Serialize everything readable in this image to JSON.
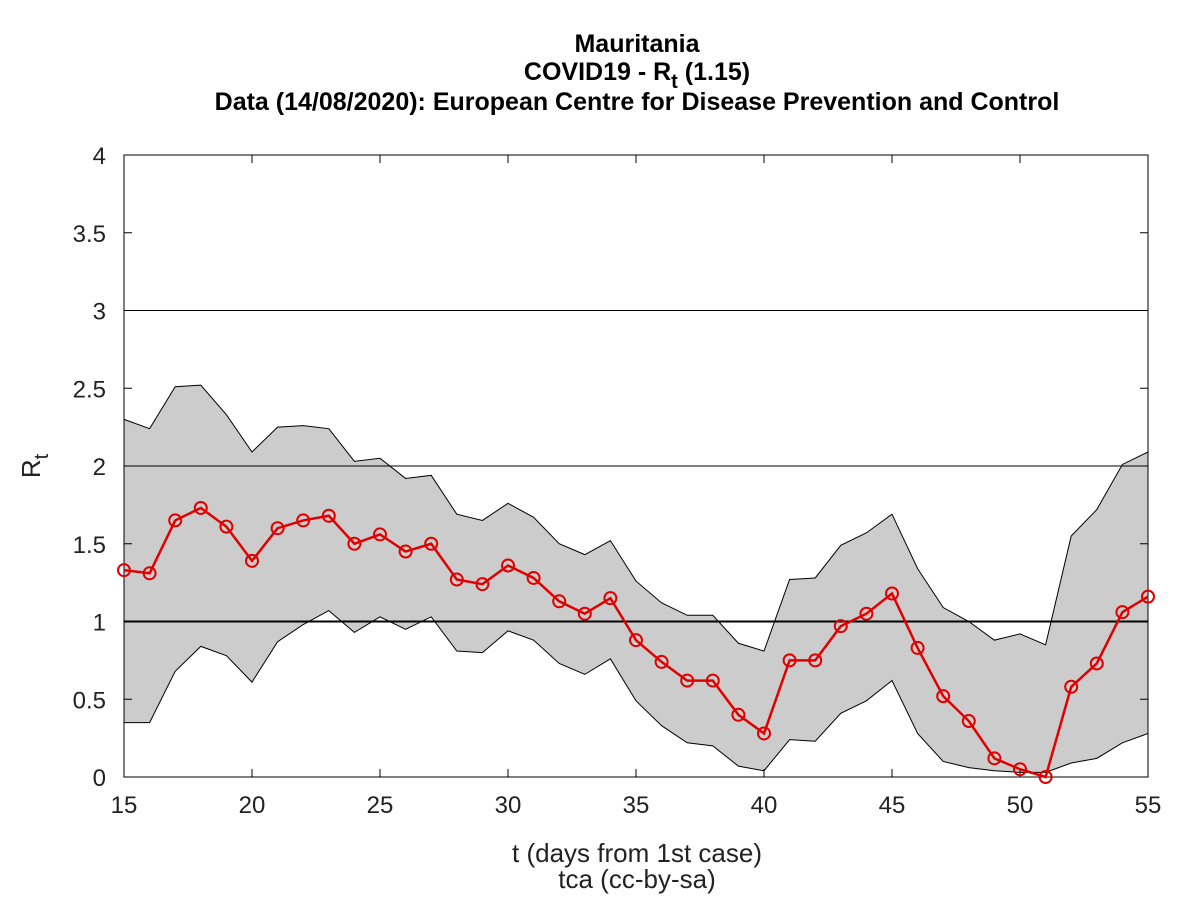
{
  "chart_data": {
    "type": "line",
    "title_lines": [
      "Mauritania",
      "COVID19 - R",
      "Data (14/08/2020): European Centre for Disease Prevention and Control"
    ],
    "title_sub": "t",
    "title_suffix": " (1.15)",
    "xlabel": "t (days from 1st case)",
    "ylabel": "R",
    "ylabel_sub": "t",
    "credit": "tca (cc-by-sa)",
    "xlim": [
      15,
      55
    ],
    "ylim": [
      0,
      4
    ],
    "x_ticks": [
      15,
      20,
      25,
      30,
      35,
      40,
      45,
      50,
      55
    ],
    "y_ticks": [
      0,
      0.5,
      1,
      1.5,
      2,
      2.5,
      3,
      3.5,
      4
    ],
    "reference_lines": [
      1,
      2,
      3
    ],
    "grid": false,
    "colors": {
      "series": "#e00000",
      "band": "#cccccc",
      "band_edge": "#000000"
    },
    "x": [
      15,
      16,
      17,
      18,
      19,
      20,
      21,
      22,
      23,
      24,
      25,
      26,
      27,
      28,
      29,
      30,
      31,
      32,
      33,
      34,
      35,
      36,
      37,
      38,
      39,
      40,
      41,
      42,
      43,
      44,
      45,
      46,
      47,
      48,
      49,
      50,
      51,
      52,
      53,
      54,
      55
    ],
    "series": [
      {
        "values": [
          1.33,
          1.31,
          1.65,
          1.73,
          1.61,
          1.39,
          1.6,
          1.65,
          1.68,
          1.5,
          1.56,
          1.45,
          1.5,
          1.27,
          1.24,
          1.36,
          1.28,
          1.13,
          1.05,
          1.15,
          0.88,
          0.74,
          0.62,
          0.62,
          0.4,
          0.28,
          0.75,
          0.75,
          0.97,
          1.05,
          1.18,
          0.83,
          0.52,
          0.36,
          0.12,
          0.05,
          0.0,
          0.58,
          0.73,
          1.06,
          1.16
        ]
      }
    ],
    "band_upper": [
      2.3,
      2.24,
      2.51,
      2.52,
      2.33,
      2.09,
      2.25,
      2.26,
      2.24,
      2.03,
      2.05,
      1.92,
      1.94,
      1.69,
      1.65,
      1.76,
      1.67,
      1.5,
      1.43,
      1.52,
      1.26,
      1.12,
      1.04,
      1.04,
      0.86,
      0.81,
      1.27,
      1.28,
      1.49,
      1.57,
      1.69,
      1.34,
      1.09,
      1.0,
      0.88,
      0.92,
      0.85,
      1.55,
      1.72,
      2.01,
      2.09
    ],
    "band_lower": [
      0.35,
      0.35,
      0.68,
      0.84,
      0.78,
      0.61,
      0.87,
      0.98,
      1.07,
      0.93,
      1.03,
      0.95,
      1.03,
      0.81,
      0.8,
      0.94,
      0.88,
      0.73,
      0.66,
      0.76,
      0.49,
      0.33,
      0.22,
      0.2,
      0.07,
      0.04,
      0.24,
      0.23,
      0.41,
      0.49,
      0.62,
      0.28,
      0.1,
      0.06,
      0.04,
      0.03,
      0.03,
      0.09,
      0.12,
      0.22,
      0.28
    ]
  }
}
